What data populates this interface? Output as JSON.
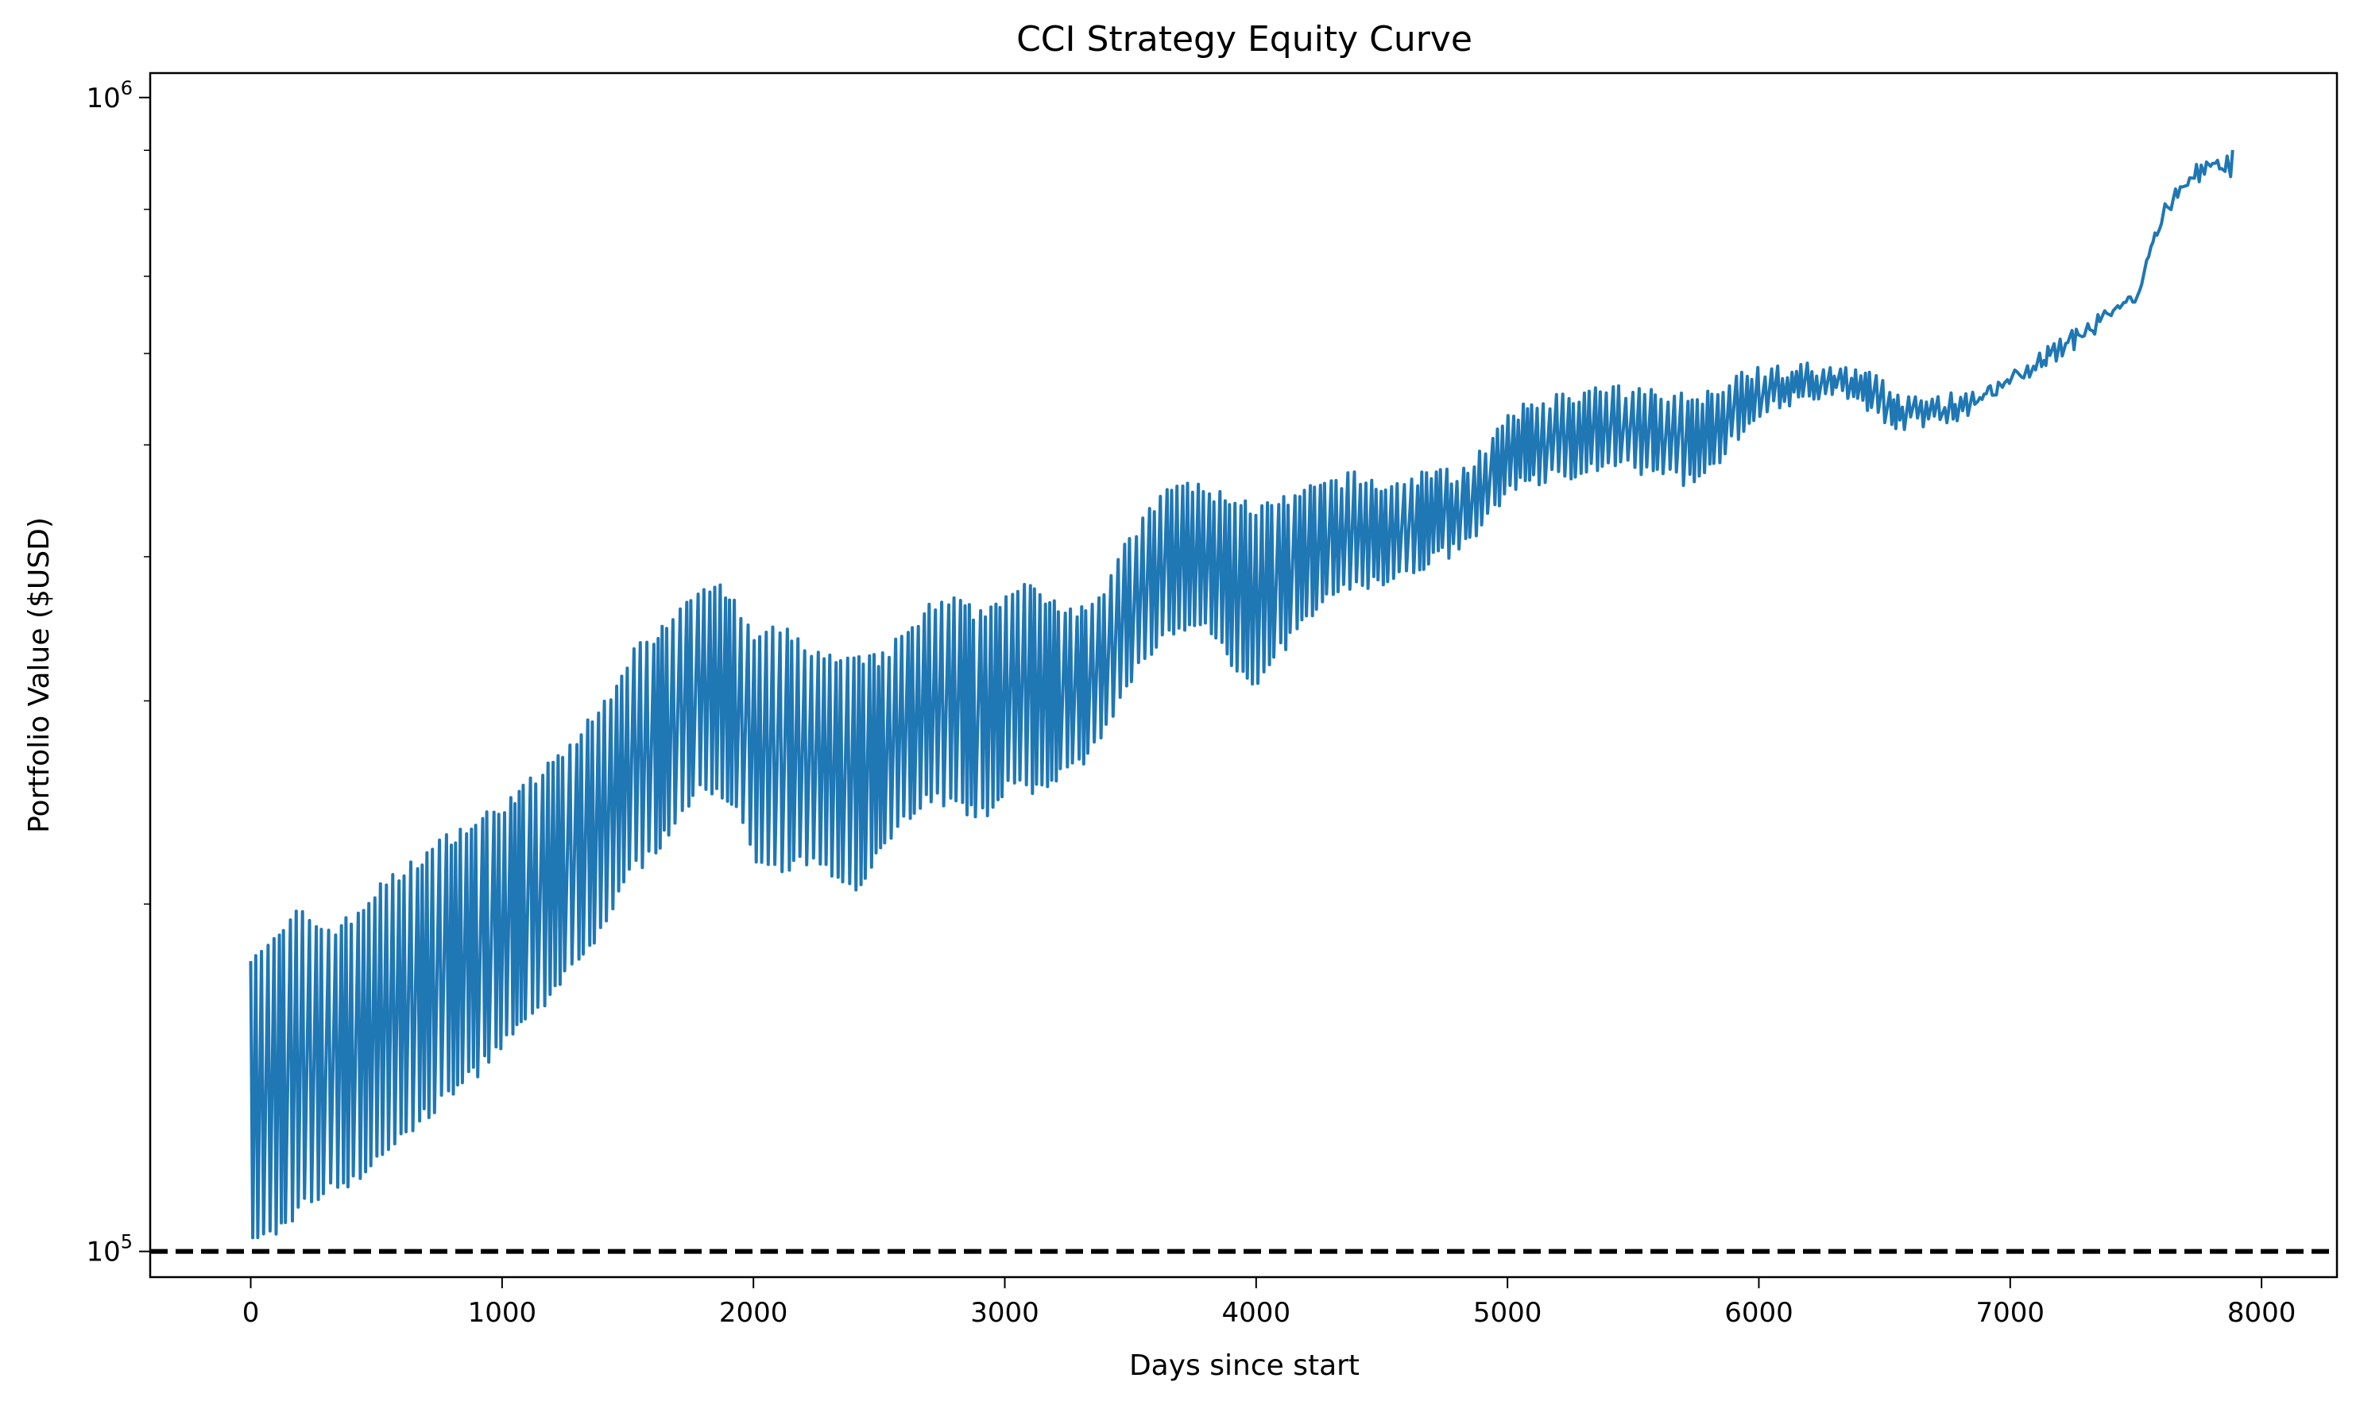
{
  "chart_data": {
    "type": "line",
    "title": "CCI Strategy Equity Curve",
    "xlabel": "Days since start",
    "ylabel": "Portfolio Value ($USD)",
    "xlim": [
      -400,
      8300
    ],
    "ylim": [
      95000,
      1050000
    ],
    "yscale": "log",
    "grid": false,
    "legend": "none",
    "x_ticks": [
      0,
      1000,
      2000,
      3000,
      4000,
      5000,
      6000,
      7000,
      8000
    ],
    "x_tick_labels": [
      "0",
      "1000",
      "2000",
      "3000",
      "4000",
      "5000",
      "6000",
      "7000",
      "8000"
    ],
    "y_major_ticks": [
      {
        "value": 100000,
        "base": "10",
        "exp": "5"
      },
      {
        "value": 1000000,
        "base": "10",
        "exp": "6"
      }
    ],
    "y_minor_ticks": [
      200000,
      300000,
      400000,
      500000,
      600000,
      700000,
      800000,
      900000
    ],
    "reference_line": {
      "y": 100000,
      "style": "dashed",
      "color": "#000000"
    },
    "series": [
      {
        "color": "#1f77b4",
        "x": [
          0,
          100,
          200,
          300,
          400,
          500,
          600,
          700,
          800,
          900,
          1000,
          1100,
          1200,
          1300,
          1400,
          1500,
          1600,
          1700,
          1800,
          1900,
          2000,
          2100,
          2200,
          2300,
          2400,
          2500,
          2600,
          2700,
          2800,
          2900,
          3000,
          3100,
          3200,
          3300,
          3400,
          3500,
          3600,
          3700,
          3800,
          3900,
          4000,
          4100,
          4200,
          4300,
          4400,
          4500,
          4600,
          4700,
          4800,
          4900,
          5000,
          5100,
          5200,
          5300,
          5400,
          5500,
          5600,
          5700,
          5800,
          5900,
          6000,
          6100,
          6200,
          6300,
          6400,
          6500,
          6600,
          6700,
          6800,
          6900,
          7000,
          7100,
          7200,
          7300,
          7400,
          7500,
          7600,
          7700,
          7800,
          7900
        ],
        "high": [
          184000,
          188000,
          200000,
          192000,
          196000,
          208000,
          215000,
          224000,
          232000,
          238000,
          246000,
          256000,
          268000,
          282000,
          300000,
          330000,
          345000,
          365000,
          385000,
          375000,
          345000,
          350000,
          340000,
          330000,
          328000,
          330000,
          345000,
          365000,
          370000,
          360000,
          375000,
          380000,
          370000,
          365000,
          380000,
          420000,
          450000,
          470000,
          460000,
          455000,
          445000,
          450000,
          460000,
          470000,
          475000,
          465000,
          470000,
          480000,
          475000,
          500000,
          530000,
          550000,
          555000,
          560000,
          565000,
          560000,
          565000,
          555000,
          560000,
          580000,
          590000,
          585000,
          590000,
          585000,
          590000,
          570000,
          550000,
          555000,
          555000,
          560000,
          580000,
          600000,
          620000,
          640000,
          660000,
          680000,
          800000,
          860000,
          880000,
          880000
        ],
        "low": [
          100000,
          103000,
          108000,
          112000,
          114000,
          118000,
          125000,
          130000,
          136000,
          142000,
          150000,
          156000,
          166000,
          176000,
          190000,
          210000,
          220000,
          235000,
          250000,
          245000,
          215000,
          210000,
          215000,
          210000,
          205000,
          220000,
          235000,
          245000,
          240000,
          235000,
          250000,
          248000,
          255000,
          260000,
          280000,
          310000,
          335000,
          340000,
          345000,
          320000,
          305000,
          330000,
          350000,
          365000,
          375000,
          375000,
          380000,
          395000,
          400000,
          420000,
          455000,
          460000,
          465000,
          470000,
          475000,
          470000,
          465000,
          460000,
          470000,
          500000,
          530000,
          540000,
          540000,
          545000,
          540000,
          515000,
          515000,
          520000,
          525000,
          545000,
          560000,
          575000,
          595000,
          615000,
          640000,
          665000,
          780000,
          845000,
          860000,
          880000
        ]
      }
    ]
  }
}
